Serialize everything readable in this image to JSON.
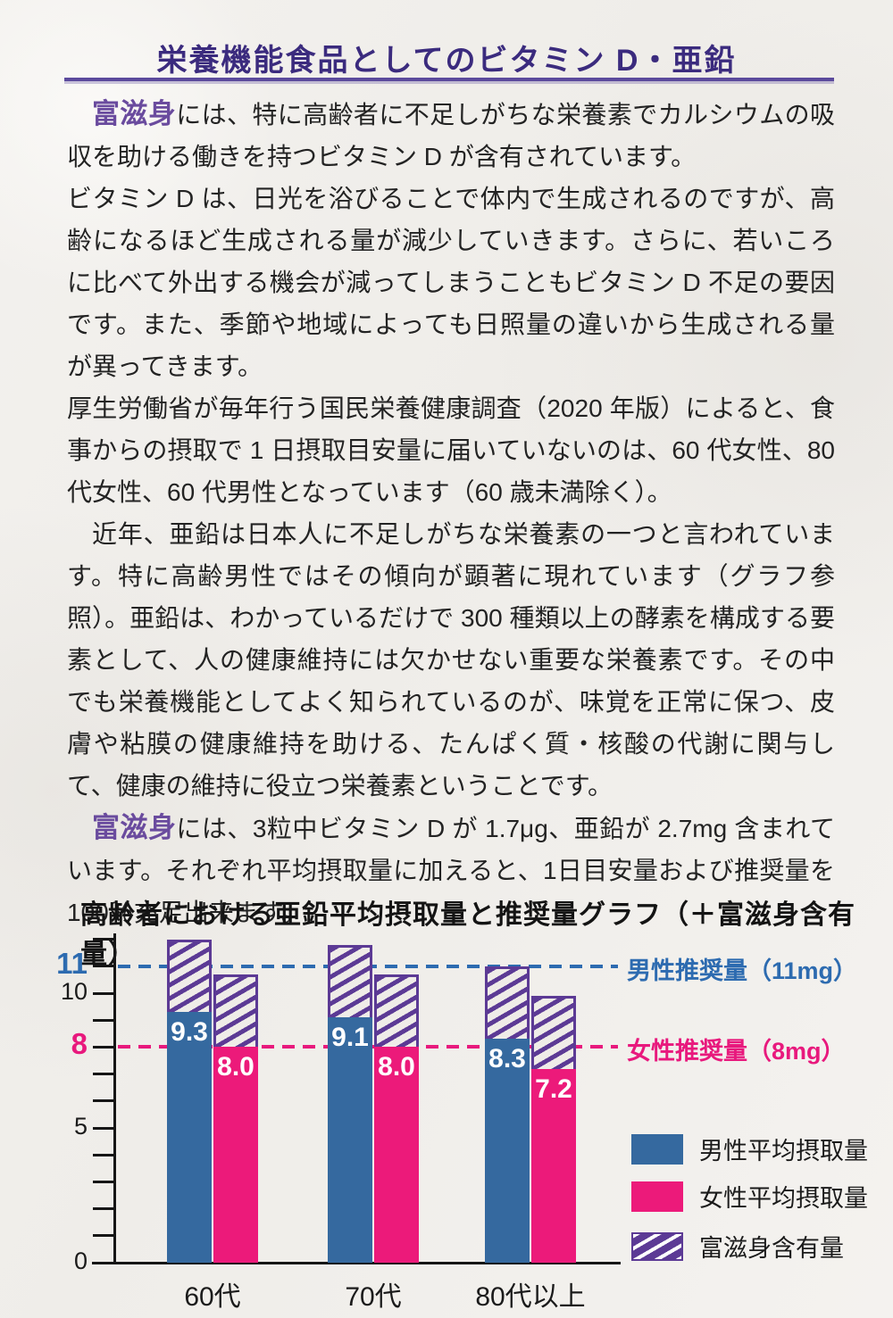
{
  "page": {
    "title": "栄養機能食品としてのビタミン D・亜鉛",
    "accent_color": "#3b2b7e",
    "brand_color": "#6a4b9e"
  },
  "body": {
    "p1": {
      "lead": "富滋身",
      "text": "には、特に高齢者に不足しがちな栄養素でカルシウムの吸収を助ける働きを持つビタミン D が含有されています。"
    },
    "p2": {
      "text": "ビタミン D は、日光を浴びることで体内で生成されるのですが、高齢になるほど生成される量が減少していきます。さらに、若いころに比べて外出する機会が減ってしまうこともビタミン D 不足の要因です。また、季節や地域によっても日照量の違いから生成される量が異ってきます。"
    },
    "p3": {
      "text": "厚生労働省が毎年行う国民栄養健康調査（2020 年版）によると、食事からの摂取で 1 日摂取目安量に届いていないのは、60 代女性、80 代女性、60 代男性となっています（60 歳未満除く）。"
    },
    "p4": {
      "text": "近年、亜鉛は日本人に不足しがちな栄養素の一つと言われています。特に高齢男性ではその傾向が顕著に現れています（グラフ参照）。亜鉛は、わかっているだけで 300 種類以上の酵素を構成する要素として、人の健康維持には欠かせない重要な栄養素です。その中でも栄養機能としてよく知られているのが、味覚を正常に保つ、皮膚や粘膜の健康維持を助ける、たんぱく質・核酸の代謝に関与して、健康の維持に役立つ栄養素ということです。"
    },
    "p5": {
      "lead": "富滋身",
      "text": "には、3粒中ビタミン D が 1.7μg、亜鉛が 2.7mg 含まれています。それぞれ平均摂取量に加えると、1日目安量および推奨量を 100％充足出来ます。"
    }
  },
  "chart_data": {
    "type": "bar",
    "title": "高齢者における亜鉛平均摂取量と推奨量グラフ（＋富滋身含有量）",
    "unit": "mg",
    "categories": [
      "60代",
      "70代",
      "80代以上"
    ],
    "series": [
      {
        "name": "男性平均摂取量",
        "style": "solid",
        "color": "#35699f",
        "values": [
          9.3,
          9.1,
          8.3
        ]
      },
      {
        "name": "女性平均摂取量",
        "style": "solid",
        "color": "#ec1a7a",
        "values": [
          8.0,
          8.0,
          7.2
        ]
      },
      {
        "name": "富滋身含有量",
        "style": "hatch",
        "color": "#5c3a95",
        "values": [
          2.7,
          2.7,
          2.7
        ],
        "note": "stacked on top of each intake bar"
      }
    ],
    "reference_lines": [
      {
        "label": "男性推奨量（11mg）",
        "value": 11,
        "color": "#2d6bb0"
      },
      {
        "label": "女性推奨量（8mg）",
        "value": 8,
        "color": "#e8197d"
      }
    ],
    "y_axis": {
      "min": 0,
      "max": 12,
      "tick_step": 1,
      "labeled_ticks": [
        {
          "value": 11,
          "style": "male"
        },
        {
          "value": 10
        },
        {
          "value": 8,
          "style": "female"
        },
        {
          "value": 5
        },
        {
          "value": 0
        }
      ]
    },
    "legend_position": "bottom-right",
    "grid": false
  }
}
